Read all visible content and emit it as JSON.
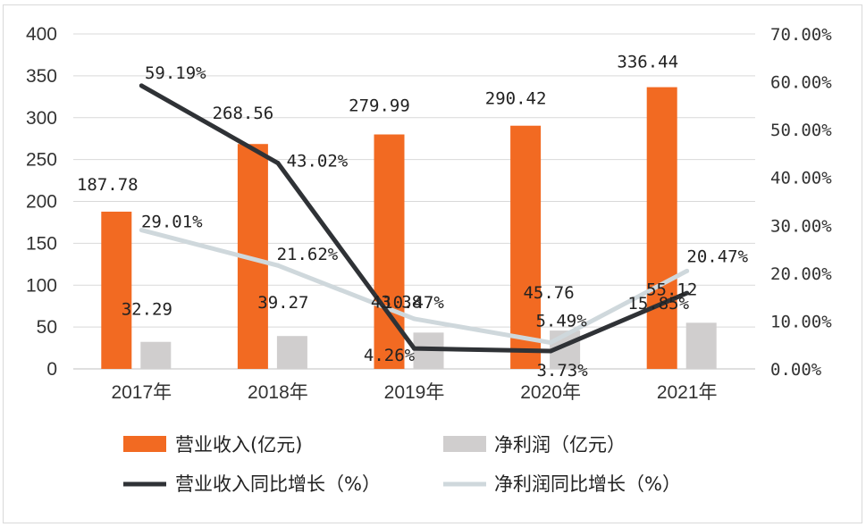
{
  "chart_data": {
    "type": "bar+line",
    "categories": [
      "2017年",
      "2018年",
      "2019年",
      "2020年",
      "2021年"
    ],
    "y_left": {
      "ylim": [
        0,
        400
      ],
      "ticks": [
        "0",
        "50",
        "100",
        "150",
        "200",
        "250",
        "300",
        "350",
        "400"
      ]
    },
    "y_right": {
      "ylim": [
        0,
        70
      ],
      "ticks": [
        "0.00%",
        "10.00%",
        "20.00%",
        "30.00%",
        "40.00%",
        "50.00%",
        "60.00%",
        "70.00%"
      ]
    },
    "grid": true,
    "legend_position": "bottom",
    "series": [
      {
        "name": "营业收入(亿元)",
        "type": "bar",
        "axis": "left",
        "color": "#f26a22",
        "values": [
          187.78,
          268.56,
          279.99,
          290.42,
          336.44
        ],
        "labels": [
          "187.78",
          "268.56",
          "279.99",
          "290.42",
          "336.44"
        ]
      },
      {
        "name": "净利润(亿元)",
        "type": "bar",
        "axis": "left",
        "color": "#d0cece",
        "values": [
          32.29,
          39.27,
          43.38,
          45.76,
          55.12
        ],
        "labels": [
          "32.29",
          "39.27",
          "43.38",
          "45.76",
          "55.12"
        ]
      },
      {
        "name": "营业收入同比增长(%)",
        "type": "line",
        "axis": "right",
        "color": "#2f3236",
        "values": [
          59.19,
          43.02,
          4.26,
          3.73,
          15.85
        ],
        "labels": [
          "59.19%",
          "43.02%",
          "4.26%",
          "3.73%",
          "15.85%"
        ]
      },
      {
        "name": "净利润同比增长(%)",
        "type": "line",
        "axis": "right",
        "color": "#cfd8dc",
        "values": [
          29.01,
          21.62,
          10.47,
          5.49,
          20.47
        ],
        "labels": [
          "29.01%",
          "21.62%",
          "10.47%",
          "5.49%",
          "20.47%"
        ]
      }
    ]
  },
  "legend": {
    "items": [
      "营业收入(亿元)",
      "净利润（亿元）",
      "营业收入同比增长（%）",
      "净利润同比增长（%）"
    ]
  }
}
